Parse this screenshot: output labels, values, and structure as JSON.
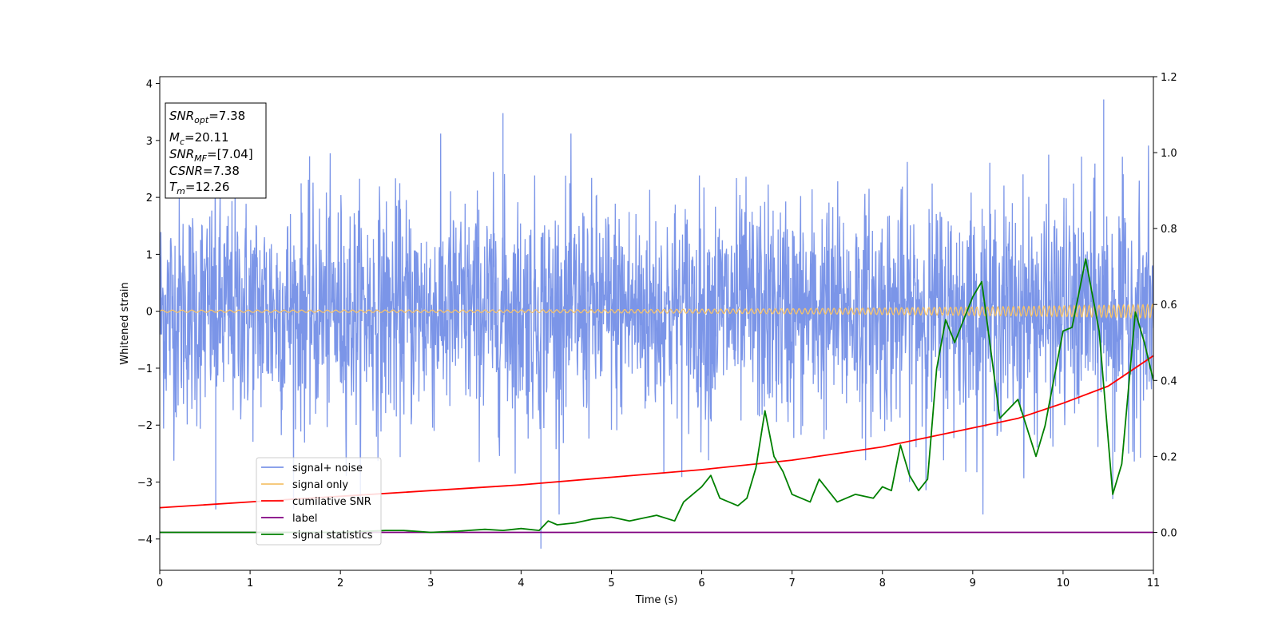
{
  "chart_data": {
    "type": "line",
    "xlabel": "Time (s)",
    "ylabel": "Whitened strain",
    "xlim": [
      0,
      11
    ],
    "ylim_left": [
      -4.55,
      4.12
    ],
    "ylim_right": [
      -0.1,
      1.2
    ],
    "xticks": [
      0,
      1,
      2,
      3,
      4,
      5,
      6,
      7,
      8,
      9,
      10,
      11
    ],
    "xtick_labels": [
      "0",
      "1",
      "2",
      "3",
      "4",
      "5",
      "6",
      "7",
      "8",
      "9",
      "10",
      "11"
    ],
    "yticks_left": [
      4,
      3,
      2,
      1,
      0,
      -1,
      -2,
      -3,
      -4
    ],
    "ytick_labels_left": [
      "4",
      "3",
      "2",
      "1",
      "0",
      "−1",
      "−2",
      "−3",
      "−4"
    ],
    "yticks_right": [
      1.2,
      1.0,
      0.8,
      0.6,
      0.4,
      0.2,
      0.0
    ],
    "ytick_labels_right": [
      "1.2",
      "1.0",
      "0.8",
      "0.6",
      "0.4",
      "0.2",
      "0.0"
    ],
    "grid": false,
    "legend_position": "lower-left",
    "info_box": {
      "position": "top-left",
      "lines": [
        {
          "sym": "SNR",
          "sub": "opt",
          "val": "=7.38"
        },
        {
          "sym": "M",
          "sub": "c",
          "val": "=20.11"
        },
        {
          "sym": "SNR",
          "sub": "MF",
          "val": "=[7.04]"
        },
        {
          "sym": "CSNR",
          "sub": "",
          "val": "=7.38"
        },
        {
          "sym": "T",
          "sub": "m",
          "val": "=12.26"
        }
      ]
    },
    "series": [
      {
        "name": "signal+ noise",
        "axis": "left",
        "color": "#7b95e8",
        "kind": "noise",
        "band_sigma": 1.0,
        "max_spike": 3.72,
        "min_spike": -4.17,
        "spikes": [
          [
            0.62,
            -3.48
          ],
          [
            3.8,
            3.48
          ],
          [
            4.22,
            -4.17
          ],
          [
            10.45,
            3.72
          ],
          [
            10.55,
            -3.3
          ]
        ]
      },
      {
        "name": "signal only",
        "axis": "left",
        "color": "#f5c26b",
        "kind": "chirp",
        "amplitude_start": 0.02,
        "amplitude_end": 0.12
      },
      {
        "name": "cumilative SNR",
        "axis": "right",
        "color": "#ff0000",
        "x": [
          0,
          1,
          2,
          3,
          4,
          5,
          6,
          7,
          8,
          8.5,
          9,
          9.5,
          10,
          10.5,
          11
        ],
        "y": [
          0.065,
          0.08,
          0.095,
          0.11,
          0.125,
          0.145,
          0.165,
          0.19,
          0.225,
          0.25,
          0.275,
          0.3,
          0.34,
          0.385,
          0.465
        ]
      },
      {
        "name": "label",
        "axis": "right",
        "color": "#800080",
        "x": [
          0,
          11
        ],
        "y": [
          0,
          0
        ]
      },
      {
        "name": "signal statistics",
        "axis": "right",
        "color": "#008000",
        "x": [
          0,
          1,
          2,
          2.5,
          2.7,
          3.0,
          3.3,
          3.6,
          3.8,
          4.0,
          4.2,
          4.3,
          4.4,
          4.6,
          4.8,
          5.0,
          5.2,
          5.5,
          5.7,
          5.8,
          6.0,
          6.1,
          6.2,
          6.4,
          6.5,
          6.6,
          6.7,
          6.8,
          6.9,
          7.0,
          7.2,
          7.3,
          7.5,
          7.7,
          7.9,
          8.0,
          8.1,
          8.2,
          8.3,
          8.4,
          8.5,
          8.6,
          8.7,
          8.8,
          9.0,
          9.1,
          9.3,
          9.5,
          9.7,
          9.8,
          10.0,
          10.1,
          10.25,
          10.4,
          10.55,
          10.65,
          10.8,
          10.9,
          11.0
        ],
        "y": [
          0.0,
          0.0,
          0.0,
          0.005,
          0.005,
          0.0,
          0.003,
          0.008,
          0.005,
          0.01,
          0.005,
          0.03,
          0.02,
          0.025,
          0.035,
          0.04,
          0.03,
          0.045,
          0.03,
          0.08,
          0.12,
          0.15,
          0.09,
          0.07,
          0.09,
          0.17,
          0.32,
          0.2,
          0.16,
          0.1,
          0.08,
          0.14,
          0.08,
          0.1,
          0.09,
          0.12,
          0.11,
          0.23,
          0.15,
          0.11,
          0.14,
          0.43,
          0.56,
          0.5,
          0.62,
          0.66,
          0.3,
          0.35,
          0.2,
          0.28,
          0.53,
          0.54,
          0.72,
          0.53,
          0.1,
          0.18,
          0.58,
          0.5,
          0.4
        ]
      }
    ]
  }
}
